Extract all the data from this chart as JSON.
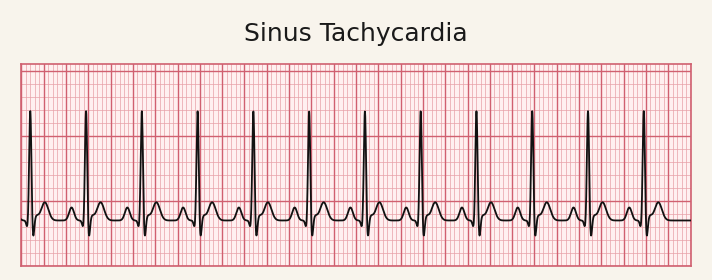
{
  "title": "Sinus Tachycardia",
  "title_fontsize": 18,
  "title_fontweight": "normal",
  "background_color": "#f8f4ec",
  "paper_bg": "#fff0f0",
  "grid_minor_color": "#e8a0a8",
  "grid_major_color": "#d06070",
  "grid_minor_lw": 0.5,
  "grid_major_lw": 1.0,
  "ecg_color": "#111111",
  "ecg_linewidth": 1.3,
  "heart_rate_bpm": 120,
  "duration_seconds": 6,
  "sample_rate": 500,
  "paper_speed_mm_per_s": 25,
  "y_min": -0.35,
  "y_max": 1.2,
  "baseline_mv": 0.0
}
